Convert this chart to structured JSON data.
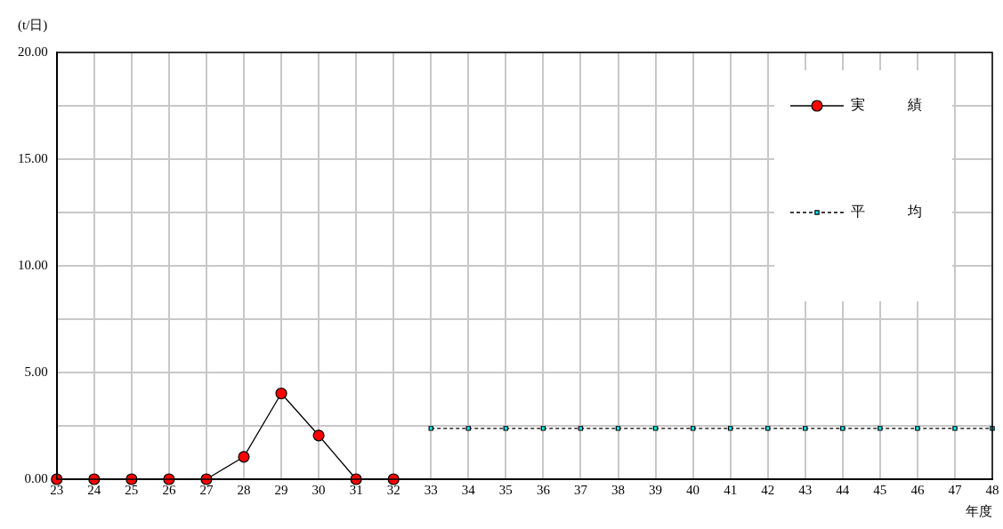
{
  "chart_data": {
    "type": "line",
    "ylabel": "(t/日)",
    "xlabel": "年度",
    "categories": [
      "23",
      "24",
      "25",
      "26",
      "27",
      "28",
      "29",
      "30",
      "31",
      "32",
      "33",
      "34",
      "35",
      "36",
      "37",
      "38",
      "39",
      "40",
      "41",
      "42",
      "43",
      "44",
      "45",
      "46",
      "47",
      "48"
    ],
    "series": [
      {
        "name": "実　　　績",
        "color": "#ff0000",
        "marker": "circle",
        "line_style": "solid",
        "values": [
          0,
          0,
          0,
          0,
          0,
          1.05,
          4.02,
          2.05,
          0,
          0,
          null,
          null,
          null,
          null,
          null,
          null,
          null,
          null,
          null,
          null,
          null,
          null,
          null,
          null,
          null,
          null
        ]
      },
      {
        "name": "平　　　均",
        "color": "#00ffff",
        "marker": "square",
        "line_style": "dashed",
        "values": [
          null,
          null,
          null,
          null,
          null,
          null,
          null,
          null,
          null,
          null,
          2.38,
          2.38,
          2.38,
          2.38,
          2.38,
          2.38,
          2.38,
          2.38,
          2.38,
          2.38,
          2.38,
          2.38,
          2.38,
          2.38,
          2.38,
          2.38
        ]
      }
    ],
    "ylim": [
      0,
      20
    ],
    "yticks": [
      {
        "value": 0,
        "label": "0.00"
      },
      {
        "value": 2.5,
        "label": null
      },
      {
        "value": 5,
        "label": "5.00"
      },
      {
        "value": 7.5,
        "label": null
      },
      {
        "value": 10,
        "label": "10.00"
      },
      {
        "value": 12.5,
        "label": null
      },
      {
        "value": 15,
        "label": "15.00"
      },
      {
        "value": 17.5,
        "label": null
      },
      {
        "value": 20,
        "label": "20.00"
      }
    ],
    "grid": true,
    "legend": "top right"
  }
}
